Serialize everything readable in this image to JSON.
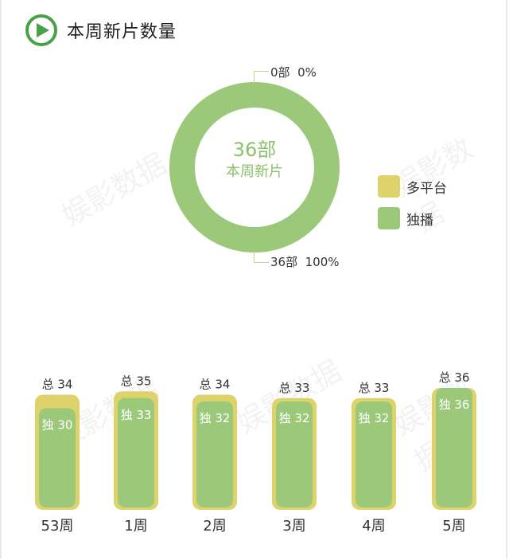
{
  "header": {
    "title": "本周新片数量"
  },
  "colors": {
    "accent": "#4aa046",
    "multi_platform": "#ddd36a",
    "exclusive": "#9cc979"
  },
  "donut": {
    "center_value": "36部",
    "center_label": "本周新片",
    "top_callout": "0部  0%",
    "bottom_callout": "36部  100%"
  },
  "legend": [
    {
      "label": "多平台",
      "color": "#ddd36a"
    },
    {
      "label": "独播",
      "color": "#9cc979"
    }
  ],
  "watermarks": [
    "娱影数据",
    "娱影数据",
    "娱影数据",
    "娱影数据",
    "娱影数据"
  ],
  "chart_data": [
    {
      "type": "pie",
      "categories": [
        "多平台",
        "独播"
      ],
      "values": [
        0,
        36
      ],
      "percentages": [
        0,
        100
      ]
    },
    {
      "type": "bar",
      "categories": [
        "53周",
        "1周",
        "2周",
        "3周",
        "4周",
        "5周"
      ],
      "series": [
        {
          "name": "总",
          "values": [
            34,
            35,
            34,
            33,
            33,
            36
          ]
        },
        {
          "name": "独",
          "values": [
            30,
            33,
            32,
            32,
            32,
            36
          ]
        }
      ]
    }
  ]
}
